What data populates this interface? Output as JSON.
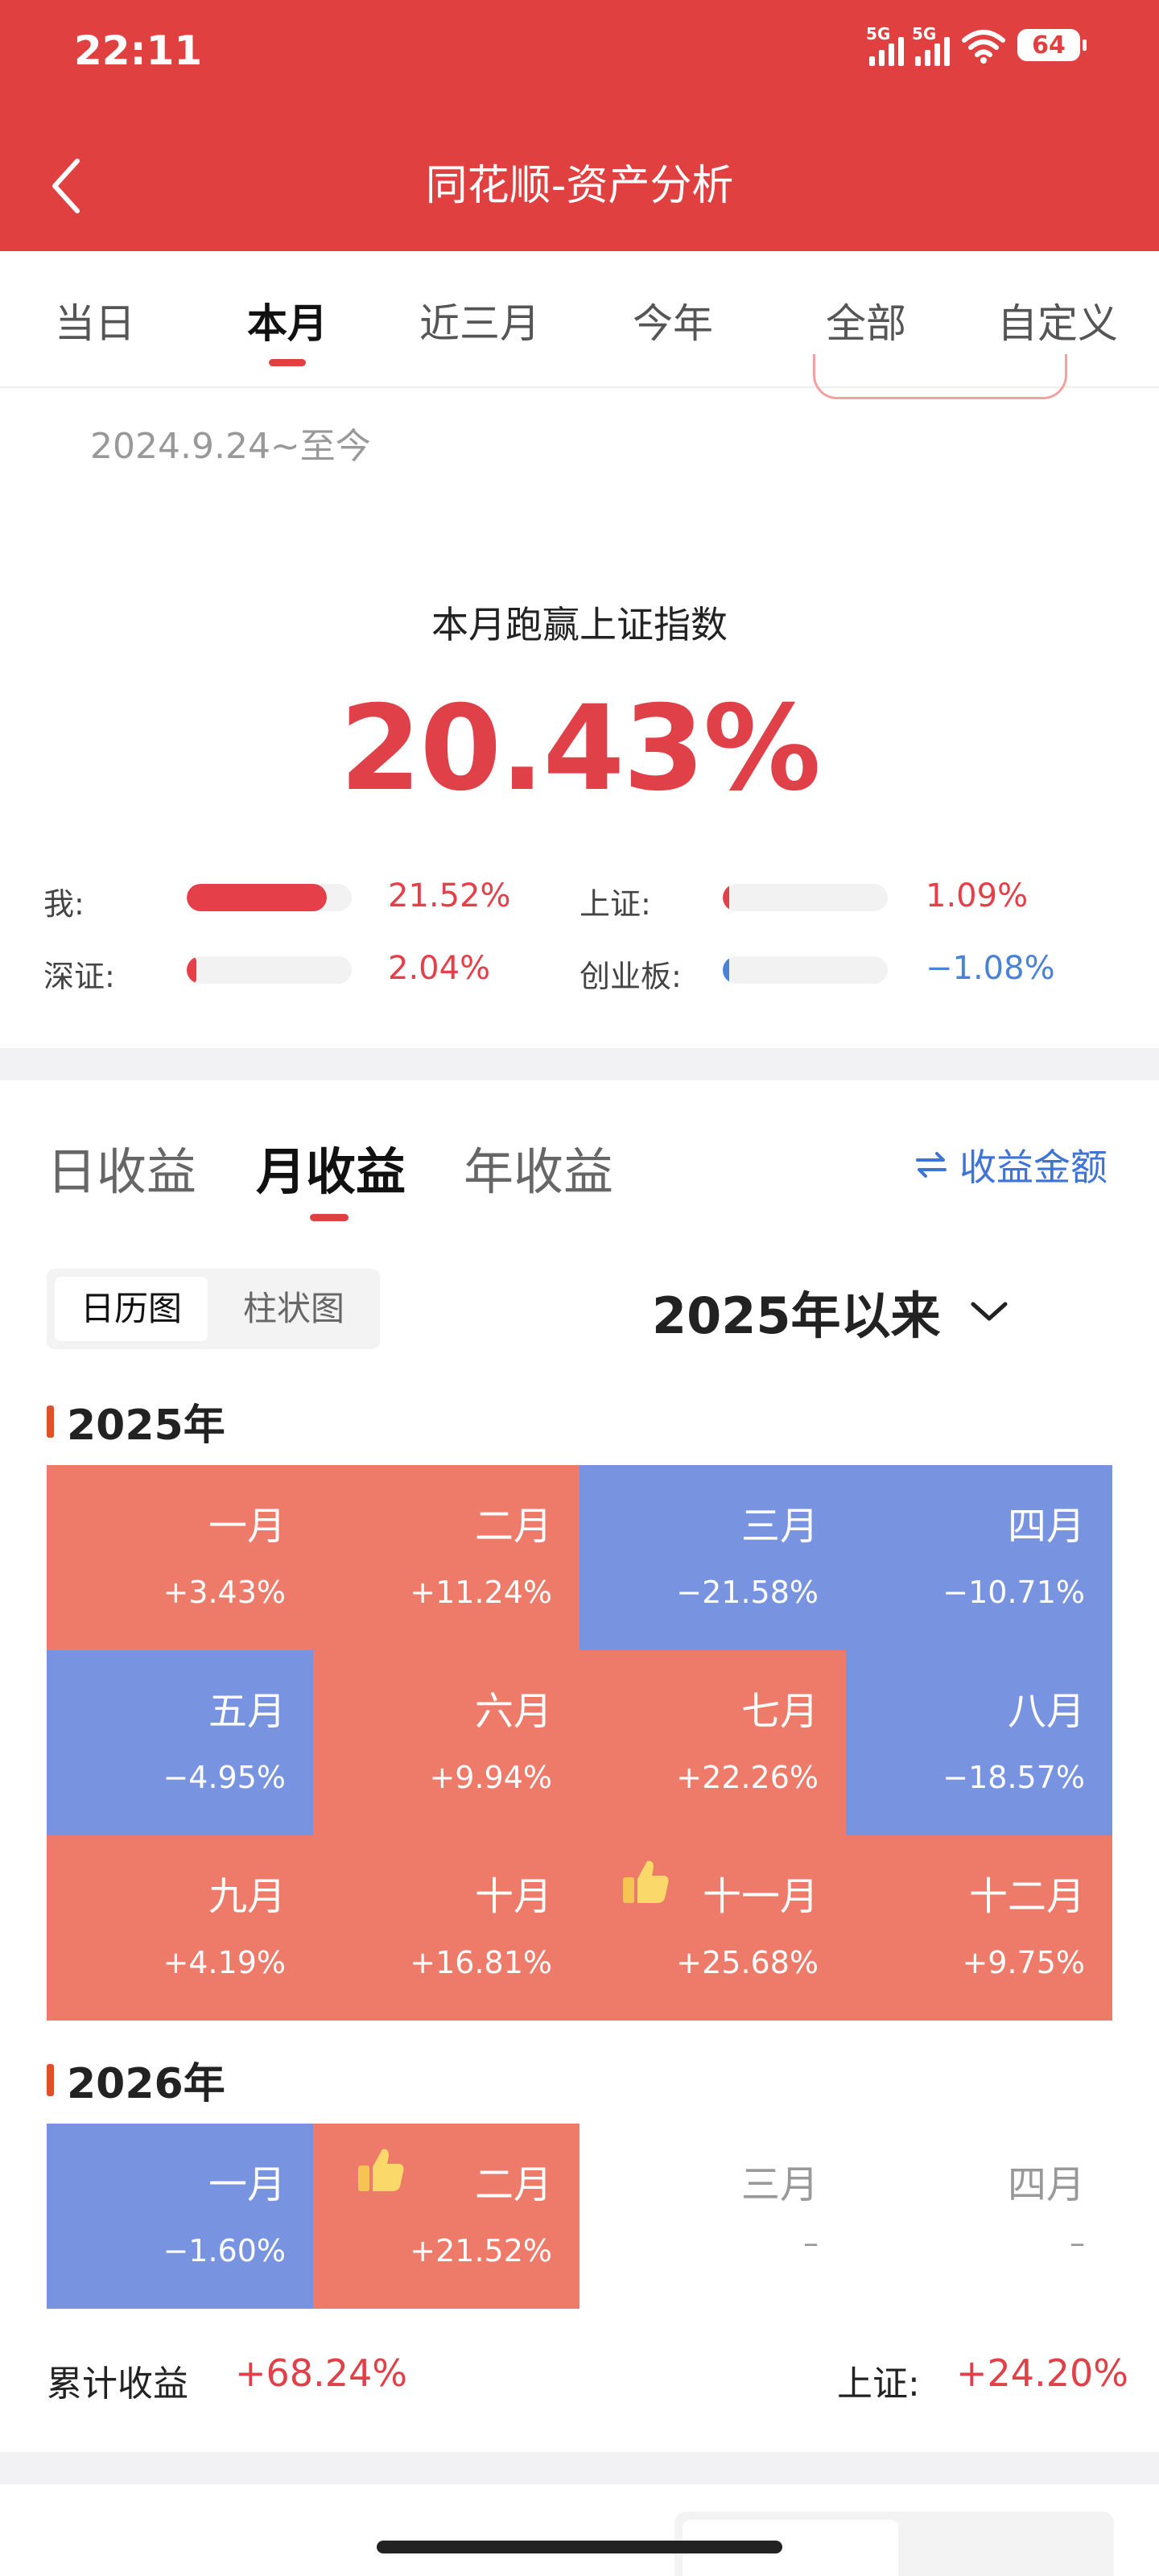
{
  "status_bar": {
    "time": "22:11",
    "net1": "5G",
    "net2": "5G",
    "battery": "64"
  },
  "header": {
    "title": "同花顺-资产分析"
  },
  "period_tabs": [
    "当日",
    "本月",
    "近三月",
    "今年",
    "全部",
    "自定义"
  ],
  "period_active": "本月",
  "date_range": "2024.9.24~至今",
  "summary": {
    "label": "本月跑赢上证指数",
    "value": "20.43%"
  },
  "comparisons": [
    {
      "label": "我:",
      "value": "21.52%",
      "ratio": 0.85,
      "color": "#e5404a"
    },
    {
      "label": "上证:",
      "value": "1.09%",
      "ratio": 0.04,
      "color": "#e5404a"
    },
    {
      "label": "深证:",
      "value": "2.04%",
      "ratio": 0.06,
      "color": "#e5404a"
    },
    {
      "label": "创业板:",
      "value": "−1.08%",
      "ratio": 0.04,
      "color": "#4a82d8"
    }
  ],
  "return_tabs": [
    "日收益",
    "月收益",
    "年收益"
  ],
  "return_active": "月收益",
  "amount_toggle": "收益金额",
  "view_options": [
    "日历图",
    "柱状图"
  ],
  "view_active": "日历图",
  "range_select": "2025年以来",
  "years": [
    {
      "year": "2025年",
      "months": [
        {
          "name": "一月",
          "value": "+3.43%",
          "dir": "up"
        },
        {
          "name": "二月",
          "value": "+11.24%",
          "dir": "up"
        },
        {
          "name": "三月",
          "value": "−21.58%",
          "dir": "down"
        },
        {
          "name": "四月",
          "value": "−10.71%",
          "dir": "down"
        },
        {
          "name": "五月",
          "value": "−4.95%",
          "dir": "down"
        },
        {
          "name": "六月",
          "value": "+9.94%",
          "dir": "up"
        },
        {
          "name": "七月",
          "value": "+22.26%",
          "dir": "up"
        },
        {
          "name": "八月",
          "value": "−18.57%",
          "dir": "down"
        },
        {
          "name": "九月",
          "value": "+4.19%",
          "dir": "up"
        },
        {
          "name": "十月",
          "value": "+16.81%",
          "dir": "up"
        },
        {
          "name": "十一月",
          "value": "+25.68%",
          "dir": "up",
          "best": true
        },
        {
          "name": "十二月",
          "value": "+9.75%",
          "dir": "up"
        }
      ]
    },
    {
      "year": "2026年",
      "months": [
        {
          "name": "一月",
          "value": "−1.60%",
          "dir": "down"
        },
        {
          "name": "二月",
          "value": "+21.52%",
          "dir": "up",
          "best": true
        },
        {
          "name": "三月",
          "value": "–",
          "dir": "empty"
        },
        {
          "name": "四月",
          "value": "–",
          "dir": "empty"
        }
      ]
    }
  ],
  "totals": {
    "label": "累计收益",
    "value": "+68.24%",
    "index_label": "上证:",
    "index_value": "+24.20%"
  },
  "colors": {
    "brand": "#e04040",
    "up_cell": "#ee7b6a",
    "down_cell": "#7893e0",
    "accent_blue": "#3d74d6"
  }
}
